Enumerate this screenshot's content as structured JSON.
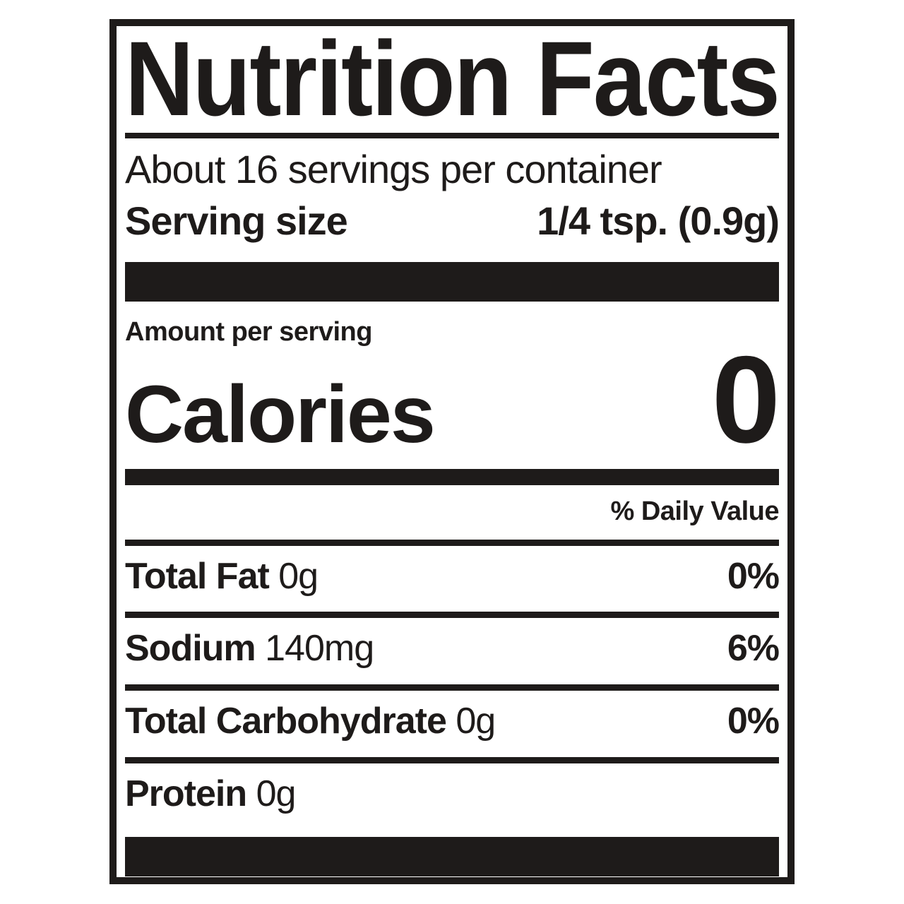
{
  "label": {
    "title": "Nutrition Facts",
    "servings_per_container": "About 16 servings per container",
    "serving_size": {
      "label": "Serving size",
      "value": "1/4 tsp. (0.9g)"
    },
    "amount_per_serving": "Amount per serving",
    "calories": {
      "label": "Calories",
      "value": "0"
    },
    "daily_value_header": "% Daily Value",
    "nutrients": [
      {
        "name": "Total Fat",
        "amount": "0g",
        "dv": "0%"
      },
      {
        "name": "Sodium",
        "amount": "140mg",
        "dv": "6%"
      },
      {
        "name": "Total Carbohydrate",
        "amount": "0g",
        "dv": "0%"
      },
      {
        "name": "Protein",
        "amount": "0g",
        "dv": ""
      }
    ],
    "colors": {
      "ink": "#1e1b1a",
      "background": "#ffffff"
    }
  }
}
